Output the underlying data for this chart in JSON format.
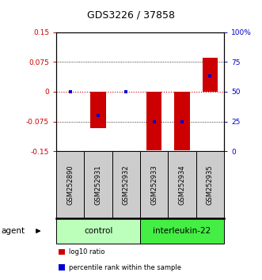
{
  "title": "GDS3226 / 37858",
  "samples": [
    "GSM252890",
    "GSM252931",
    "GSM252932",
    "GSM252933",
    "GSM252934",
    "GSM252935"
  ],
  "log10_ratio": [
    0.0,
    -0.092,
    0.0,
    -0.148,
    -0.148,
    0.085
  ],
  "percentile_rank": [
    50,
    30,
    50,
    25,
    25,
    63
  ],
  "groups": [
    {
      "label": "control",
      "indices": [
        0,
        1,
        2
      ],
      "color": "#bbffbb"
    },
    {
      "label": "interleukin-22",
      "indices": [
        3,
        4,
        5
      ],
      "color": "#44ee44"
    }
  ],
  "ylim_left": [
    -0.15,
    0.15
  ],
  "yticks_left": [
    -0.15,
    -0.075,
    0,
    0.075,
    0.15
  ],
  "ytick_labels_left": [
    "-0.15",
    "-0.075",
    "0",
    "0.075",
    "0.15"
  ],
  "ylim_right": [
    0,
    100
  ],
  "yticks_right": [
    0,
    25,
    50,
    75,
    100
  ],
  "ytick_labels_right": [
    "0",
    "25",
    "50",
    "75",
    "100%"
  ],
  "bar_color": "#cc0000",
  "point_color": "#0000cc",
  "gridline_y": [
    -0.075,
    0.075
  ],
  "zero_line_color": "#cc0000",
  "grid_color": "#333333",
  "bg_color": "#ffffff",
  "sample_bg_color": "#cccccc",
  "agent_label": "agent",
  "legend_items": [
    {
      "color": "#cc0000",
      "label": "log10 ratio"
    },
    {
      "color": "#0000cc",
      "label": "percentile rank within the sample"
    }
  ]
}
